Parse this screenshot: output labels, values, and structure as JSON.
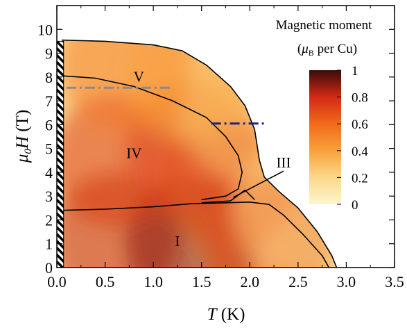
{
  "chart_data": {
    "type": "heatmap",
    "xlabel": "T (K)",
    "ylabel": "μ0H (T)",
    "xlim": [
      0,
      3.5
    ],
    "ylim": [
      0,
      11
    ],
    "x_ticks": [
      0.0,
      0.5,
      1.0,
      1.5,
      2.0,
      2.5,
      3.0,
      3.5
    ],
    "x_tick_labels": [
      "0.0",
      "0.5",
      "1.0",
      "1.5",
      "2.0",
      "2.5",
      "3.0",
      "3.5"
    ],
    "y_ticks": [
      0,
      1,
      2,
      3,
      4,
      5,
      6,
      7,
      8,
      9,
      10
    ],
    "y_tick_labels": [
      "0",
      "1",
      "2",
      "3",
      "4",
      "5",
      "6",
      "7",
      "8",
      "9",
      "10"
    ],
    "colorbar": {
      "title_line1": "Magnetic moment",
      "title_line2": "(μB per Cu)",
      "ticks": [
        0,
        0.2,
        0.4,
        0.6,
        0.8,
        1
      ],
      "tick_labels": [
        "0",
        "0.2",
        "0.4",
        "0.6",
        "0.8",
        "1"
      ],
      "range": [
        0,
        1
      ]
    },
    "regions": [
      {
        "label": "I",
        "x": 1.25,
        "y": 0.9
      },
      {
        "label": "III",
        "x": 2.35,
        "y": 4.2
      },
      {
        "label": "IV",
        "x": 0.8,
        "y": 4.6
      },
      {
        "label": "V",
        "x": 0.85,
        "y": 7.8
      }
    ],
    "phase_boundaries": [
      {
        "name": "outer",
        "points": [
          [
            0.05,
            9.55
          ],
          [
            0.5,
            9.5
          ],
          [
            1.0,
            9.35
          ],
          [
            1.3,
            9.1
          ],
          [
            1.55,
            8.5
          ],
          [
            1.8,
            7.6
          ],
          [
            1.95,
            6.8
          ],
          [
            2.05,
            5.8
          ],
          [
            2.1,
            4.5
          ],
          [
            2.15,
            3.8
          ],
          [
            2.3,
            3.2
          ],
          [
            2.5,
            2.5
          ],
          [
            2.7,
            1.5
          ],
          [
            2.85,
            0.5
          ],
          [
            2.9,
            0
          ]
        ]
      },
      {
        "name": "IV_upper",
        "points": [
          [
            0.05,
            8.05
          ],
          [
            0.4,
            7.95
          ],
          [
            0.8,
            7.6
          ],
          [
            1.2,
            7.0
          ],
          [
            1.55,
            6.3
          ],
          [
            1.75,
            5.5
          ],
          [
            1.88,
            4.7
          ],
          [
            1.92,
            4.0
          ],
          [
            1.88,
            3.3
          ],
          [
            1.75,
            3.0
          ],
          [
            1.5,
            2.85
          ]
        ]
      },
      {
        "name": "lower",
        "points": [
          [
            0.05,
            2.4
          ],
          [
            0.5,
            2.45
          ],
          [
            1.0,
            2.55
          ],
          [
            1.4,
            2.68
          ],
          [
            1.75,
            2.72
          ],
          [
            2.0,
            2.75
          ],
          [
            2.2,
            2.65
          ],
          [
            2.35,
            2.2
          ],
          [
            2.55,
            1.4
          ],
          [
            2.75,
            0.5
          ],
          [
            2.82,
            0
          ]
        ]
      },
      {
        "name": "III_left",
        "points": [
          [
            1.5,
            2.72
          ],
          [
            1.8,
            2.8
          ],
          [
            1.95,
            3.25
          ],
          [
            2.05,
            2.85
          ]
        ]
      },
      {
        "name": "III_pointer",
        "points": [
          [
            1.83,
            2.95
          ],
          [
            2.35,
            4.05
          ]
        ]
      }
    ],
    "dashed_lines": [
      {
        "color": "#8a8a8a",
        "points": [
          [
            0.1,
            7.55
          ],
          [
            1.2,
            7.55
          ]
        ]
      },
      {
        "color": "#1a237e",
        "points": [
          [
            1.6,
            6.05
          ],
          [
            2.15,
            6.05
          ]
        ]
      }
    ],
    "intensity_field": [
      {
        "x": 0.6,
        "y": 1.2,
        "v": 0.82
      },
      {
        "x": 1.4,
        "y": 1.0,
        "v": 0.9
      },
      {
        "x": 2.2,
        "y": 1.0,
        "v": 0.7
      },
      {
        "x": 0.6,
        "y": 4.5,
        "v": 0.75
      },
      {
        "x": 1.4,
        "y": 5.0,
        "v": 0.72
      },
      {
        "x": 1.8,
        "y": 3.5,
        "v": 0.7
      },
      {
        "x": 0.7,
        "y": 8.5,
        "v": 0.55
      },
      {
        "x": 1.4,
        "y": 8.0,
        "v": 0.4
      },
      {
        "x": 2.0,
        "y": 6.5,
        "v": 0.3
      },
      {
        "x": 2.5,
        "y": 2.5,
        "v": 0.25
      }
    ],
    "hatched_strip": {
      "x_range": [
        0.0,
        0.07
      ],
      "y_range": [
        0,
        9.5
      ]
    }
  }
}
